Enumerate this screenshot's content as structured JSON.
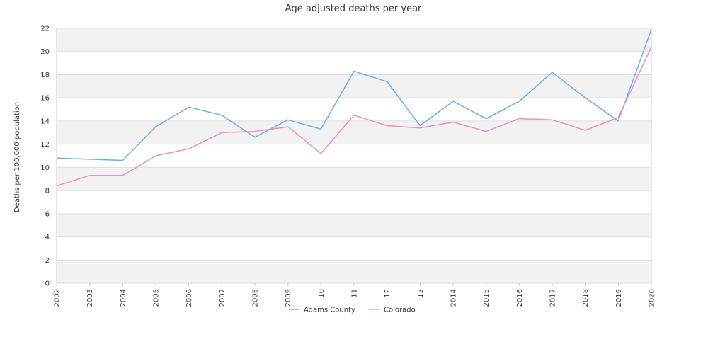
{
  "chart_data": {
    "type": "line",
    "title": "Age adjusted deaths per year",
    "xlabel": "",
    "ylabel": "Deaths per 100,000 population",
    "categories": [
      "2002",
      "2003",
      "2004",
      "2005",
      "2006",
      "2007",
      "2008",
      "2009",
      "10",
      "11",
      "12",
      "13",
      "2014",
      "2015",
      "2016",
      "2017",
      "2018",
      "2019",
      "2020"
    ],
    "ylim": [
      0,
      22
    ],
    "yticks": [
      0,
      2,
      4,
      6,
      8,
      10,
      12,
      14,
      16,
      18,
      20,
      22
    ],
    "grid": true,
    "legend_position": "bottom",
    "series": [
      {
        "name": "Adams County",
        "color": "#6aaee8",
        "values": [
          10.8,
          10.7,
          10.6,
          13.5,
          15.2,
          14.5,
          12.6,
          14.1,
          13.3,
          18.3,
          17.4,
          13.6,
          15.7,
          14.2,
          15.7,
          18.2,
          16.0,
          14.0,
          21.9
        ]
      },
      {
        "name": "Colorado",
        "color": "#f08cbf",
        "values": [
          8.4,
          9.3,
          9.3,
          11.0,
          11.6,
          13.0,
          13.1,
          13.5,
          11.2,
          14.5,
          13.6,
          13.4,
          13.9,
          13.1,
          14.2,
          14.1,
          13.2,
          14.3,
          20.4
        ]
      }
    ],
    "colors": {
      "band": "#f2f2f2",
      "gridline": "#dddddd",
      "axis": "#cccccc"
    }
  }
}
